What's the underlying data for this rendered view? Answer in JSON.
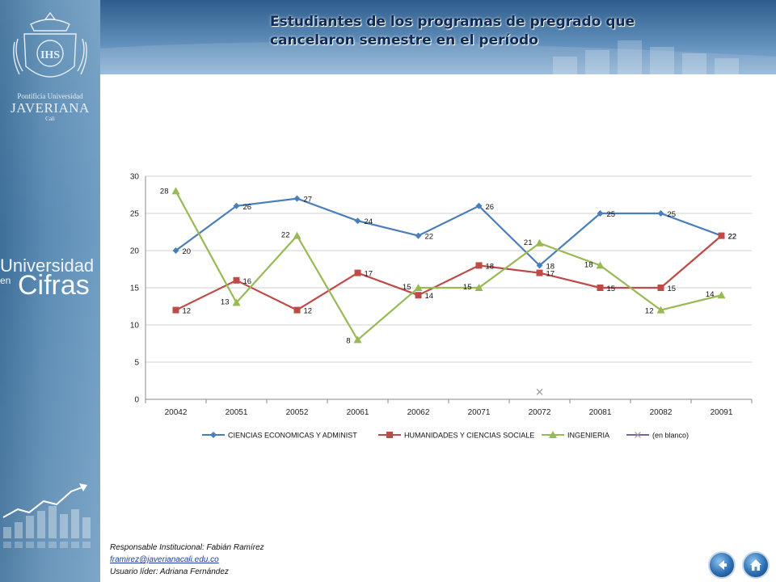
{
  "header": {
    "title_line1": "Estudiantes  de los programas de pregrado que",
    "title_line2": "cancelaron semestre  en el período"
  },
  "sidebar": {
    "logo_line1": "Pontificia Universidad",
    "logo_line2": "JAVERIANA",
    "logo_line3": "Cali",
    "brand_line1": "Universidad",
    "brand_line2": "en",
    "brand_line3": "Cifras"
  },
  "colors": {
    "series1": "#4a7ebb",
    "series2": "#be4b48",
    "series3": "#98b954",
    "series4": "#7d60a0"
  },
  "chart_data": {
    "type": "line",
    "title": "",
    "xlabel": "",
    "ylabel": "",
    "ylim": [
      0,
      30
    ],
    "yticks": [
      0,
      5,
      10,
      15,
      20,
      25,
      30
    ],
    "grid": true,
    "legend": "bottom",
    "categories": [
      "20042",
      "20051",
      "20052",
      "20061",
      "20062",
      "20071",
      "20072",
      "20081",
      "20082",
      "20091"
    ],
    "series": [
      {
        "name": "CIENCIAS ECONOMICAS Y ADMINIST",
        "values": [
          20,
          26,
          27,
          24,
          22,
          26,
          18,
          25,
          25,
          22
        ],
        "marker": "diamond"
      },
      {
        "name": "HUMANIDADES Y CIENCIAS SOCIALE",
        "values": [
          12,
          16,
          12,
          17,
          14,
          18,
          17,
          15,
          15,
          22
        ],
        "marker": "square"
      },
      {
        "name": "INGENIERIA",
        "values": [
          28,
          13,
          22,
          8,
          15,
          15,
          21,
          18,
          12,
          14
        ],
        "marker": "triangle"
      },
      {
        "name": "(en blanco)",
        "values": [
          null,
          null,
          null,
          null,
          null,
          null,
          1,
          null,
          null,
          null
        ],
        "marker": "x"
      }
    ]
  },
  "footer": {
    "responsible": "Responsable  Institucional: Fabián Ramírez",
    "email": "framirez@javerianacali.edu.co",
    "leader": "Usuario líder: Adriana Fernández"
  }
}
